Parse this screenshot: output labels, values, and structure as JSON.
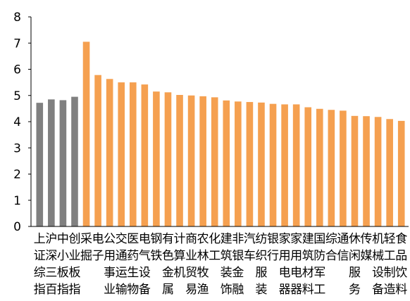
{
  "chart_data": {
    "type": "bar",
    "categories": [
      "上证综指",
      "沪深三百",
      "中小板指",
      "创业板指",
      "采掘",
      "电子",
      "公用事业",
      "交通运输",
      "医药生物",
      "电气设备",
      "钢铁",
      "有色金属",
      "计算机",
      "商业贸易",
      "农林牧渔",
      "化工",
      "建筑装饰",
      "非银金融",
      "汽车",
      "纺织服装",
      "银行",
      "家用电器",
      "家电",
      "建筑材料",
      "国防军工",
      "综合",
      "通信",
      "休闲服务",
      "传媒",
      "机械设备",
      "轻工制造",
      "食品饮料"
    ],
    "label_lines": [
      "上沪中创采电公交医电钢有计商农化建非汽纺银家家建国综通休传机轻食",
      "证深小业掘子用通药气铁色算业林工筑银车织行用用筑防合信闲媒械工品",
      "综三板板　　事运生设　金机贸牧　装金　服　电电材军　　服　设制饮",
      "指百指指　　业输物备　属　易渔　饰融　装　器器料工　　务　备造料"
    ],
    "values": [
      4.72,
      4.85,
      4.82,
      4.95,
      7.05,
      5.78,
      5.63,
      5.5,
      5.5,
      5.42,
      5.15,
      5.12,
      5.02,
      5.0,
      4.97,
      4.93,
      4.81,
      4.77,
      4.75,
      4.73,
      4.68,
      4.66,
      4.66,
      4.55,
      4.49,
      4.45,
      4.42,
      4.22,
      4.21,
      4.18,
      4.1,
      4.03
    ],
    "bar_colors": [
      "#808080",
      "#808080",
      "#808080",
      "#808080",
      "#f5a050",
      "#f5a050",
      "#f5a050",
      "#f5a050",
      "#f5a050",
      "#f5a050",
      "#f5a050",
      "#f5a050",
      "#f5a050",
      "#f5a050",
      "#f5a050",
      "#f5a050",
      "#f5a050",
      "#f5a050",
      "#f5a050",
      "#f5a050",
      "#f5a050",
      "#f5a050",
      "#f5a050",
      "#f5a050",
      "#f5a050",
      "#f5a050",
      "#f5a050",
      "#f5a050",
      "#f5a050",
      "#f5a050",
      "#f5a050",
      "#f5a050"
    ],
    "ylim": [
      0,
      8
    ],
    "yticks": [
      "0",
      "1",
      "2",
      "3",
      "4",
      "5",
      "6",
      "7",
      "8"
    ],
    "title": "",
    "xlabel": "",
    "ylabel": "",
    "grid": false,
    "legend": "none"
  }
}
